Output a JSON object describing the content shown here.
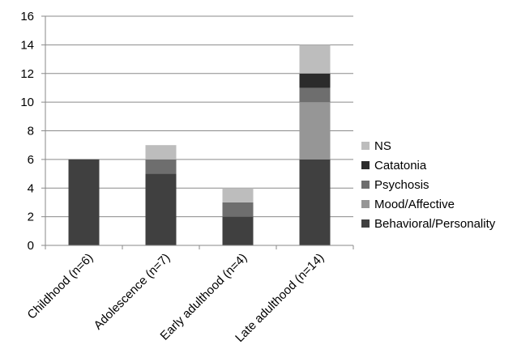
{
  "chart_data": {
    "type": "bar",
    "stacked": true,
    "categories": [
      "Childhood (n=6)",
      "Adolescence (n=7)",
      "Early adulthood (n=4)",
      "Late adulthood (n=14)"
    ],
    "series": [
      {
        "name": "Behavioral/Personality",
        "values": [
          6,
          5,
          2,
          6
        ],
        "color": "#404040"
      },
      {
        "name": "Mood/Affective",
        "values": [
          0,
          0,
          0,
          4
        ],
        "color": "#969696"
      },
      {
        "name": "Psychosis",
        "values": [
          0,
          1,
          1,
          1
        ],
        "color": "#6e6e6e"
      },
      {
        "name": "Catatonia",
        "values": [
          0,
          0,
          0,
          1
        ],
        "color": "#2b2b2b"
      },
      {
        "name": "NS",
        "values": [
          0,
          1,
          1,
          2
        ],
        "color": "#bdbdbd"
      }
    ],
    "y_ticks": [
      "0",
      "2",
      "4",
      "6",
      "8",
      "10",
      "12",
      "14",
      "16"
    ],
    "ylim": [
      0,
      16
    ],
    "grid": true,
    "legend_position": "right",
    "legend_order": [
      "NS",
      "Catatonia",
      "Psychosis",
      "Mood/Affective",
      "Behavioral/Personality"
    ]
  }
}
